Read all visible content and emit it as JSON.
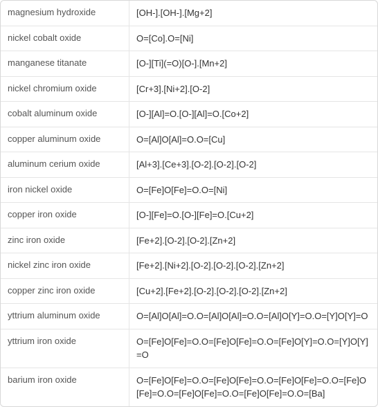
{
  "table": {
    "background_color": "#ffffff",
    "border_color": "#d8d8d8",
    "row_border_color": "#e5e5e5",
    "name_color": "#555555",
    "formula_color": "#333333",
    "font_size": 13,
    "name_col_width": 185,
    "rows": [
      {
        "name": "magnesium hydroxide",
        "formula": "[OH-].[OH-].[Mg+2]"
      },
      {
        "name": "nickel cobalt oxide",
        "formula": "O=[Co].O=[Ni]"
      },
      {
        "name": "manganese titanate",
        "formula": "[O-][Ti](=O)[O-].[Mn+2]"
      },
      {
        "name": "nickel chromium oxide",
        "formula": "[Cr+3].[Ni+2].[O-2]"
      },
      {
        "name": "cobalt aluminum oxide",
        "formula": "[O-][Al]=O.[O-][Al]=O.[Co+2]"
      },
      {
        "name": "copper aluminum oxide",
        "formula": "O=[Al]O[Al]=O.O=[Cu]"
      },
      {
        "name": "aluminum cerium oxide",
        "formula": "[Al+3].[Ce+3].[O-2].[O-2].[O-2]"
      },
      {
        "name": "iron nickel oxide",
        "formula": "O=[Fe]O[Fe]=O.O=[Ni]"
      },
      {
        "name": "copper iron oxide",
        "formula": "[O-][Fe]=O.[O-][Fe]=O.[Cu+2]"
      },
      {
        "name": "zinc iron oxide",
        "formula": "[Fe+2].[O-2].[O-2].[Zn+2]"
      },
      {
        "name": "nickel zinc iron oxide",
        "formula": "[Fe+2].[Ni+2].[O-2].[O-2].[O-2].[Zn+2]"
      },
      {
        "name": "copper zinc iron oxide",
        "formula": "[Cu+2].[Fe+2].[O-2].[O-2].[O-2].[Zn+2]"
      },
      {
        "name": "yttrium aluminum oxide",
        "formula": "O=[Al]O[Al]=O.O=[Al]O[Al]=O.O=[Al]O[Y]=O.O=[Y]O[Y]=O"
      },
      {
        "name": "yttrium iron oxide",
        "formula": "O=[Fe]O[Fe]=O.O=[Fe]O[Fe]=O.O=[Fe]O[Y]=O.O=[Y]O[Y]=O"
      },
      {
        "name": "barium iron oxide",
        "formula": "O=[Fe]O[Fe]=O.O=[Fe]O[Fe]=O.O=[Fe]O[Fe]=O.O=[Fe]O[Fe]=O.O=[Fe]O[Fe]=O.O=[Fe]O[Fe]=O.O=[Ba]"
      }
    ]
  }
}
